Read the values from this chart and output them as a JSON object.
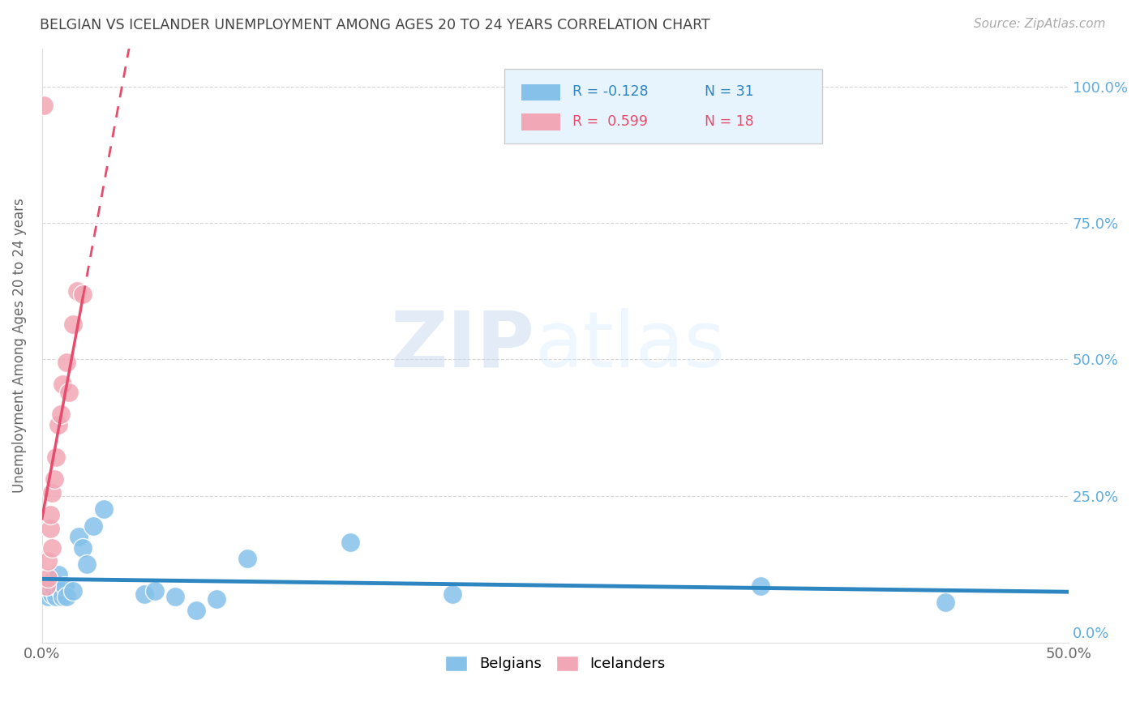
{
  "title": "BELGIAN VS ICELANDER UNEMPLOYMENT AMONG AGES 20 TO 24 YEARS CORRELATION CHART",
  "source_text": "Source: ZipAtlas.com",
  "ylabel": "Unemployment Among Ages 20 to 24 years",
  "watermark_zip": "ZIP",
  "watermark_atlas": "atlas",
  "xlim": [
    0.0,
    0.5
  ],
  "ylim": [
    -0.02,
    1.07
  ],
  "yticks": [
    0.0,
    0.25,
    0.5,
    0.75,
    1.0
  ],
  "yticklabels": [
    "0.0%",
    "25.0%",
    "50.0%",
    "75.0%",
    "100.0%"
  ],
  "belgian_R": -0.128,
  "belgian_N": 31,
  "icelander_R": 0.599,
  "icelander_N": 18,
  "belgian_color": "#85C1E9",
  "icelander_color": "#F1A7B5",
  "belgian_line_color": "#2E86C1",
  "icelander_line_color": "#E74C6C",
  "belgians_x": [
    0.001,
    0.002,
    0.003,
    0.004,
    0.004,
    0.005,
    0.005,
    0.006,
    0.006,
    0.007,
    0.008,
    0.009,
    0.01,
    0.011,
    0.012,
    0.015,
    0.018,
    0.02,
    0.022,
    0.025,
    0.03,
    0.05,
    0.055,
    0.065,
    0.075,
    0.085,
    0.1,
    0.15,
    0.2,
    0.35,
    0.44
  ],
  "belgians_y": [
    0.085,
    0.075,
    0.065,
    0.08,
    0.09,
    0.07,
    0.085,
    0.08,
    0.075,
    0.065,
    0.105,
    0.075,
    0.065,
    0.085,
    0.065,
    0.075,
    0.175,
    0.155,
    0.125,
    0.195,
    0.225,
    0.07,
    0.075,
    0.065,
    0.04,
    0.06,
    0.135,
    0.165,
    0.07,
    0.085,
    0.055
  ],
  "icelanders_x": [
    0.001,
    0.002,
    0.003,
    0.003,
    0.004,
    0.004,
    0.005,
    0.005,
    0.006,
    0.007,
    0.008,
    0.009,
    0.01,
    0.012,
    0.013,
    0.015,
    0.017,
    0.02
  ],
  "icelanders_y": [
    0.965,
    0.085,
    0.1,
    0.13,
    0.19,
    0.215,
    0.155,
    0.255,
    0.28,
    0.32,
    0.38,
    0.4,
    0.455,
    0.495,
    0.44,
    0.565,
    0.625,
    0.62
  ],
  "background_color": "#FFFFFF",
  "grid_color": "#CCCCCC",
  "title_color": "#444444",
  "axis_label_color": "#666666",
  "tick_label_color": "#666666",
  "right_tick_color": "#5DADE2",
  "legend_box_color": "#E8F4FD",
  "legend_border_color": "#CCCCCC"
}
